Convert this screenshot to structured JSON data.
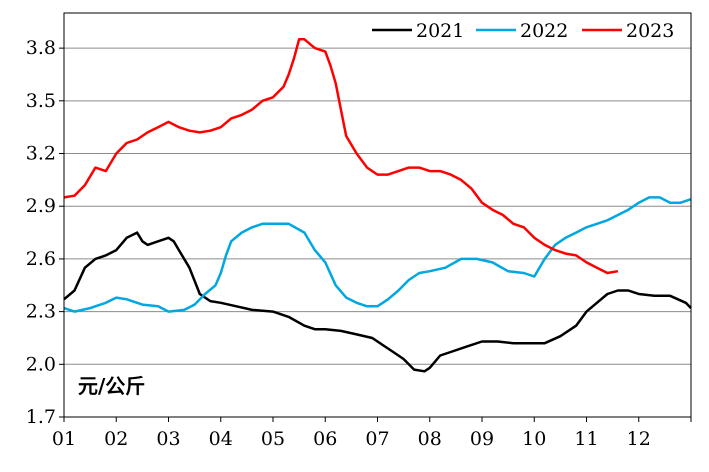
{
  "chart_data": {
    "type": "line",
    "unit_label": "元/公斤",
    "x_tick_labels": [
      "01",
      "02",
      "03",
      "04",
      "05",
      "06",
      "07",
      "08",
      "09",
      "10",
      "11",
      "12"
    ],
    "y_tick_labels": [
      "1.7",
      "2.0",
      "2.3",
      "2.6",
      "2.9",
      "3.2",
      "3.5",
      "3.8"
    ],
    "ylim": [
      1.7,
      4.0
    ],
    "xlim": [
      1,
      13
    ],
    "grid": "horizontal",
    "legend_position": "top-right",
    "series": [
      {
        "name": "2021",
        "color": "#000000",
        "x": [
          1.0,
          1.2,
          1.4,
          1.6,
          1.8,
          2.0,
          2.2,
          2.4,
          2.5,
          2.6,
          2.8,
          3.0,
          3.1,
          3.2,
          3.4,
          3.6,
          3.8,
          4.0,
          4.3,
          4.6,
          5.0,
          5.3,
          5.6,
          5.8,
          6.0,
          6.3,
          6.6,
          6.9,
          7.2,
          7.5,
          7.7,
          7.9,
          8.0,
          8.2,
          8.4,
          8.7,
          9.0,
          9.3,
          9.6,
          9.9,
          10.2,
          10.5,
          10.8,
          11.0,
          11.2,
          11.4,
          11.6,
          11.8,
          12.0,
          12.3,
          12.6,
          12.9,
          13.0
        ],
        "y": [
          2.37,
          2.42,
          2.55,
          2.6,
          2.62,
          2.65,
          2.72,
          2.75,
          2.7,
          2.68,
          2.7,
          2.72,
          2.7,
          2.65,
          2.55,
          2.4,
          2.36,
          2.35,
          2.33,
          2.31,
          2.3,
          2.27,
          2.22,
          2.2,
          2.2,
          2.19,
          2.17,
          2.15,
          2.09,
          2.03,
          1.97,
          1.96,
          1.98,
          2.05,
          2.07,
          2.1,
          2.13,
          2.13,
          2.12,
          2.12,
          2.12,
          2.16,
          2.22,
          2.3,
          2.35,
          2.4,
          2.42,
          2.42,
          2.4,
          2.39,
          2.39,
          2.35,
          2.32
        ]
      },
      {
        "name": "2022",
        "color": "#00A7E1",
        "x": [
          1.0,
          1.2,
          1.5,
          1.8,
          2.0,
          2.2,
          2.5,
          2.8,
          3.0,
          3.3,
          3.5,
          3.7,
          3.9,
          4.0,
          4.1,
          4.2,
          4.4,
          4.6,
          4.8,
          5.0,
          5.3,
          5.6,
          5.8,
          6.0,
          6.2,
          6.4,
          6.6,
          6.8,
          7.0,
          7.2,
          7.4,
          7.6,
          7.8,
          8.0,
          8.3,
          8.6,
          8.9,
          9.2,
          9.5,
          9.8,
          10.0,
          10.2,
          10.4,
          10.6,
          10.8,
          11.0,
          11.2,
          11.4,
          11.6,
          11.8,
          12.0,
          12.2,
          12.4,
          12.6,
          12.8,
          13.0
        ],
        "y": [
          2.32,
          2.3,
          2.32,
          2.35,
          2.38,
          2.37,
          2.34,
          2.33,
          2.3,
          2.31,
          2.34,
          2.4,
          2.45,
          2.52,
          2.62,
          2.7,
          2.75,
          2.78,
          2.8,
          2.8,
          2.8,
          2.75,
          2.65,
          2.58,
          2.45,
          2.38,
          2.35,
          2.33,
          2.33,
          2.37,
          2.42,
          2.48,
          2.52,
          2.53,
          2.55,
          2.6,
          2.6,
          2.58,
          2.53,
          2.52,
          2.5,
          2.6,
          2.68,
          2.72,
          2.75,
          2.78,
          2.8,
          2.82,
          2.85,
          2.88,
          2.92,
          2.95,
          2.95,
          2.92,
          2.92,
          2.94
        ]
      },
      {
        "name": "2023",
        "color": "#FF0000",
        "x": [
          1.0,
          1.2,
          1.4,
          1.6,
          1.8,
          2.0,
          2.2,
          2.4,
          2.6,
          2.8,
          3.0,
          3.2,
          3.4,
          3.6,
          3.8,
          4.0,
          4.2,
          4.4,
          4.6,
          4.8,
          5.0,
          5.2,
          5.3,
          5.4,
          5.5,
          5.6,
          5.8,
          6.0,
          6.1,
          6.2,
          6.3,
          6.4,
          6.6,
          6.8,
          7.0,
          7.2,
          7.4,
          7.6,
          7.8,
          8.0,
          8.2,
          8.4,
          8.6,
          8.8,
          9.0,
          9.2,
          9.4,
          9.6,
          9.8,
          10.0,
          10.2,
          10.4,
          10.6,
          10.8,
          11.0,
          11.2,
          11.4,
          11.6
        ],
        "y": [
          2.95,
          2.96,
          3.02,
          3.12,
          3.1,
          3.2,
          3.26,
          3.28,
          3.32,
          3.35,
          3.38,
          3.35,
          3.33,
          3.32,
          3.33,
          3.35,
          3.4,
          3.42,
          3.45,
          3.5,
          3.52,
          3.58,
          3.65,
          3.74,
          3.85,
          3.85,
          3.8,
          3.78,
          3.7,
          3.6,
          3.45,
          3.3,
          3.2,
          3.12,
          3.08,
          3.08,
          3.1,
          3.12,
          3.12,
          3.1,
          3.1,
          3.08,
          3.05,
          3.0,
          2.92,
          2.88,
          2.85,
          2.8,
          2.78,
          2.72,
          2.68,
          2.65,
          2.63,
          2.62,
          2.58,
          2.55,
          2.52,
          2.53
        ]
      }
    ]
  }
}
